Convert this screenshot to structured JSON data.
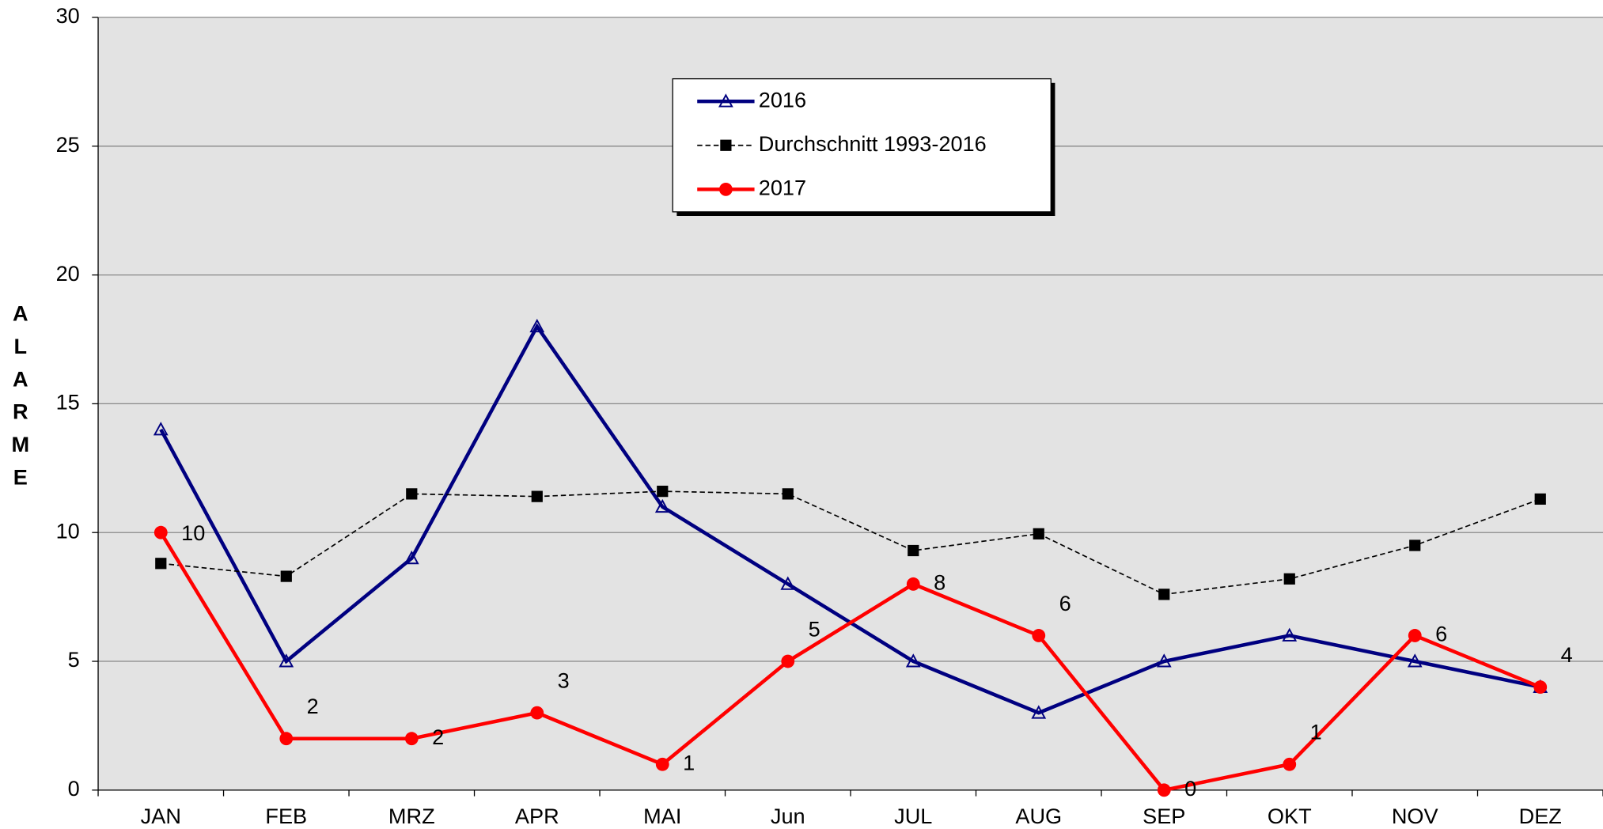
{
  "chart_data": {
    "type": "line",
    "y_label": "ALARME",
    "categories": [
      "JAN",
      "FEB",
      "MRZ",
      "APR",
      "MAI",
      "Jun",
      "JUL",
      "AUG",
      "SEP",
      "OKT",
      "NOV",
      "DEZ"
    ],
    "series": [
      {
        "name": "2016",
        "color": "#000080",
        "marker": "triangle-open",
        "dashed": false,
        "values": [
          14,
          5,
          9,
          18,
          11,
          8,
          5,
          3,
          5,
          6,
          5,
          4
        ]
      },
      {
        "name": "Durchschnitt 1993-2016",
        "color": "#000000",
        "marker": "square",
        "dashed": true,
        "values": [
          8.8,
          8.3,
          11.5,
          11.4,
          11.6,
          11.5,
          9.3,
          9.95,
          7.6,
          8.2,
          9.5,
          11.3
        ]
      },
      {
        "name": "2017",
        "color": "#ff0000",
        "marker": "circle",
        "dashed": false,
        "show_labels": true,
        "values": [
          10,
          2,
          2,
          3,
          1,
          5,
          8,
          6,
          0,
          1,
          6,
          4
        ]
      }
    ],
    "ylim": [
      0,
      30
    ],
    "yticks": [
      0,
      5,
      10,
      15,
      20,
      25,
      30
    ],
    "grid": true,
    "legend": "top-center"
  }
}
